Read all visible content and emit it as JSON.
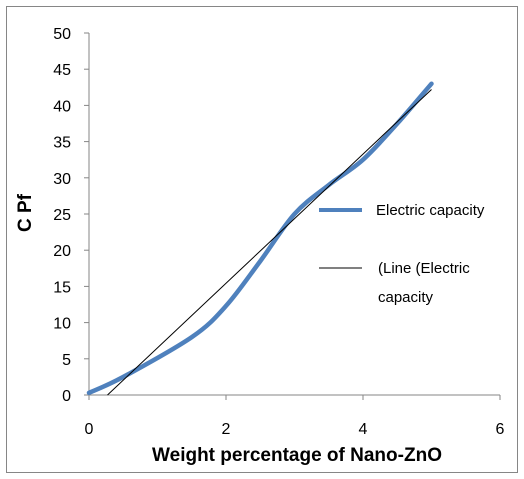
{
  "chart_data": {
    "type": "line",
    "title": "",
    "xlabel": "Weight percentage of Nano-ZnO",
    "ylabel": "C Pf",
    "xlim": [
      0,
      6
    ],
    "ylim": [
      0,
      50
    ],
    "x_ticks": [
      "0",
      "2",
      "4",
      "6"
    ],
    "y_ticks": [
      "0",
      "5",
      "10",
      "15",
      "20",
      "25",
      "30",
      "35",
      "40",
      "45",
      "50"
    ],
    "grid": false,
    "legend_position": "right",
    "series": [
      {
        "name": "Electric capacity",
        "kind": "smooth-line",
        "color": "#4F81BD",
        "x": [
          0,
          0.5,
          1.5,
          2,
          2.5,
          3,
          3.5,
          4,
          4.5,
          5
        ],
        "y": [
          0.3,
          2.5,
          8,
          12.3,
          18.5,
          25,
          29,
          32.5,
          37.5,
          43
        ]
      },
      {
        "name": "(Line (Electric capacity",
        "legend_lines": [
          "(Line (Electric",
          "capacity"
        ],
        "kind": "linear-trendline",
        "color": "#000000",
        "x": [
          0.27,
          5
        ],
        "y": [
          0,
          42.2
        ]
      }
    ]
  },
  "frame": {
    "border_color": "#868686"
  }
}
